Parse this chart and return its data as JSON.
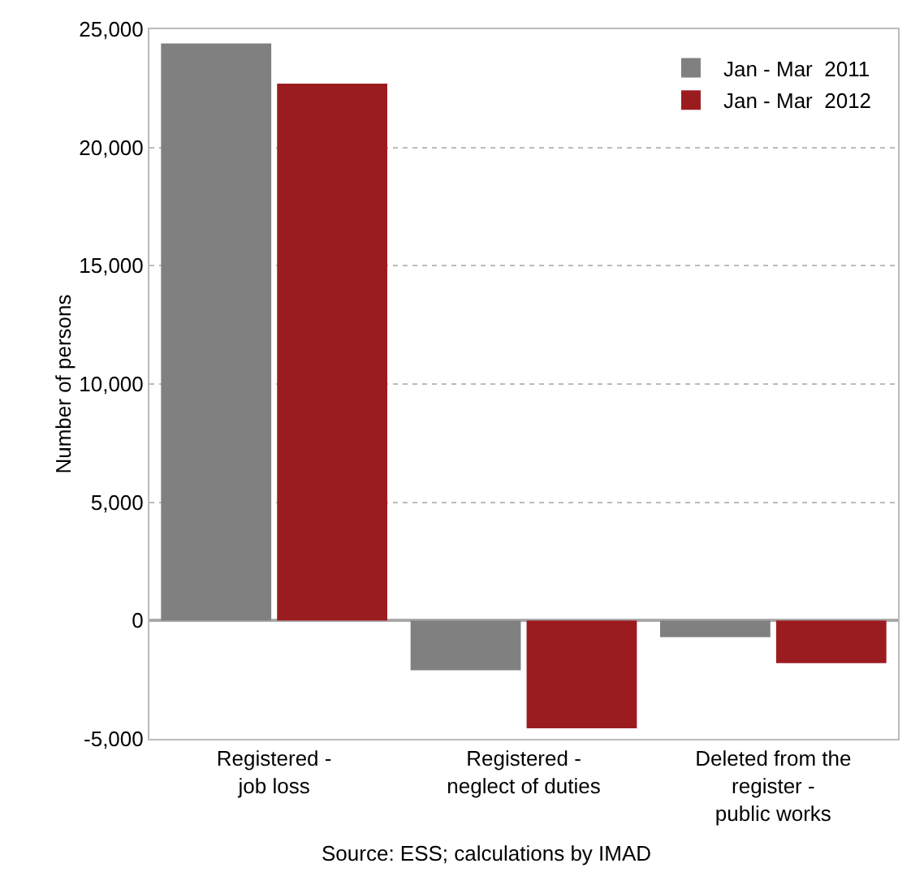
{
  "chart_data": {
    "type": "bar",
    "ylabel": "Number of persons",
    "categories": [
      "Registered -\njob loss",
      "Registered -\nneglect of duties",
      "Deleted from the\nregister -\npublic works"
    ],
    "series": [
      {
        "name": "Jan - Mar  2011",
        "color": "#808080",
        "values": [
          24400,
          -2100,
          -700
        ]
      },
      {
        "name": "Jan - Mar  2012",
        "color": "#9b1c20",
        "values": [
          22700,
          -4550,
          -1800
        ]
      }
    ],
    "ylim": [
      -5000,
      25000
    ],
    "yticks": [
      {
        "value": -5000,
        "label": "-5,000"
      },
      0,
      {
        "value": 5000,
        "label": "5,000"
      },
      {
        "value": 10000,
        "label": "10,000"
      },
      {
        "value": 15000,
        "label": "15,000"
      },
      {
        "value": 20000,
        "label": "20,000"
      },
      {
        "value": 25000,
        "label": "25,000"
      }
    ],
    "grid": "y",
    "legend": "top right",
    "annotations": [
      "Source: ESS; calculations by IMAD"
    ]
  }
}
